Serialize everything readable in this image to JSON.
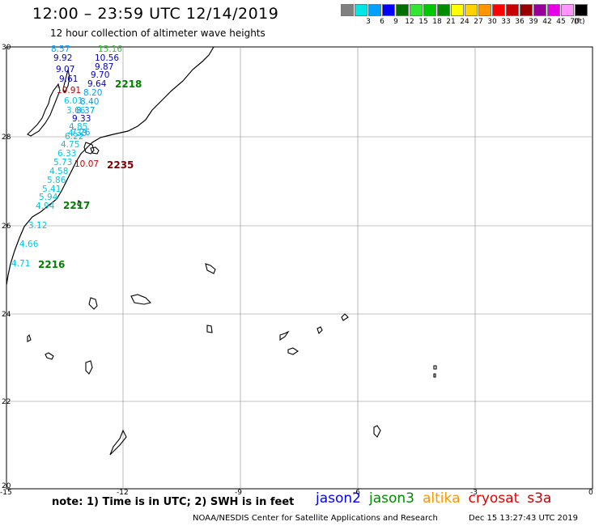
{
  "header": {
    "title": "12:00 – 23:59 UTC 12/14/2019",
    "subtitle": "12 hour collection of altimeter wave heights"
  },
  "color_scale": {
    "unit": "(ft)",
    "bins": [
      {
        "color": "#808080",
        "label": ""
      },
      {
        "color": "#00e6e6",
        "label": "3"
      },
      {
        "color": "#00a0ff",
        "label": "6"
      },
      {
        "color": "#0000ff",
        "label": "9"
      },
      {
        "color": "#006e00",
        "label": "12"
      },
      {
        "color": "#32e632",
        "label": "15"
      },
      {
        "color": "#00c800",
        "label": "18"
      },
      {
        "color": "#008c00",
        "label": "21"
      },
      {
        "color": "#ffff00",
        "label": "24"
      },
      {
        "color": "#ffd200",
        "label": "27"
      },
      {
        "color": "#ff9600",
        "label": "30"
      },
      {
        "color": "#ff0000",
        "label": "33"
      },
      {
        "color": "#c80000",
        "label": "36"
      },
      {
        "color": "#960000",
        "label": "39"
      },
      {
        "color": "#960096",
        "label": "42"
      },
      {
        "color": "#e600e6",
        "label": "45"
      },
      {
        "color": "#ff96ff",
        "label": "70"
      },
      {
        "color": "#000000",
        "label": ""
      }
    ]
  },
  "map": {
    "lat_labels": [
      "30",
      "28",
      "26",
      "24",
      "22",
      "20"
    ],
    "lon_labels": [
      "-15",
      "-12",
      "-9",
      "-6",
      "-3",
      "0"
    ],
    "track_labels": [
      {
        "text": "2218",
        "color": "#008000"
      },
      {
        "text": "2235",
        "color": "#800000"
      },
      {
        "text": "2217",
        "color": "#008000"
      },
      {
        "text": "2216",
        "color": "#008000"
      }
    ],
    "observations": [
      {
        "v": "8.57",
        "color": "#00a0ff"
      },
      {
        "v": "15.16",
        "color": "#32c832"
      },
      {
        "v": "9.92",
        "color": "#0000c8"
      },
      {
        "v": "10.56",
        "color": "#0000c8"
      },
      {
        "v": "9.07",
        "color": "#0000c8"
      },
      {
        "v": "9.87",
        "color": "#0000c8"
      },
      {
        "v": "9.61",
        "color": "#0000c8"
      },
      {
        "v": "9.70",
        "color": "#0000c8"
      },
      {
        "v": "9.64",
        "color": "#0000c8"
      },
      {
        "v": "10.91",
        "color": "#c80000"
      },
      {
        "v": "8.20",
        "color": "#00a0ff"
      },
      {
        "v": "6.01",
        "color": "#00c8e6"
      },
      {
        "v": "8.40",
        "color": "#00a0ff"
      },
      {
        "v": "3.66",
        "color": "#00c8e6"
      },
      {
        "v": "8.37",
        "color": "#00a0ff"
      },
      {
        "v": "9.33",
        "color": "#0000c8"
      },
      {
        "v": "4.85",
        "color": "#00c8e6"
      },
      {
        "v": "4.33",
        "color": "#00c8e6"
      },
      {
        "v": "7.26",
        "color": "#00a0ff"
      },
      {
        "v": "6.22",
        "color": "#00c8e6"
      },
      {
        "v": "4.75",
        "color": "#00c8e6"
      },
      {
        "v": "6.33",
        "color": "#00c8e6"
      },
      {
        "v": "5.73",
        "color": "#00c8e6"
      },
      {
        "v": "10.07",
        "color": "#c80000"
      },
      {
        "v": "4.58",
        "color": "#00c8e6"
      },
      {
        "v": "5.86",
        "color": "#00c8e6"
      },
      {
        "v": "5.41",
        "color": "#00c8e6"
      },
      {
        "v": "5.94",
        "color": "#00c8e6"
      },
      {
        "v": "4.94",
        "color": "#00c8e6"
      },
      {
        "v": "3.12",
        "color": "#00c8e6"
      },
      {
        "v": "4.66",
        "color": "#00c8e6"
      },
      {
        "v": "4.71",
        "color": "#00c8e6"
      }
    ]
  },
  "footer": {
    "note": "note: 1) Time is in UTC; 2) SWH is in feet",
    "satellites": [
      {
        "name": "jason2",
        "color": "#0000ff"
      },
      {
        "name": "jason3",
        "color": "#008c00"
      },
      {
        "name": "altika",
        "color": "#ff9600"
      },
      {
        "name": "cryosat",
        "color": "#e60000"
      },
      {
        "name": "s3a",
        "color": "#c80000"
      }
    ],
    "credit": "NOAA/NESDIS Center for Satellite Applications and Research",
    "timestamp": "Dec 15 13:27:43 UTC 2019"
  }
}
